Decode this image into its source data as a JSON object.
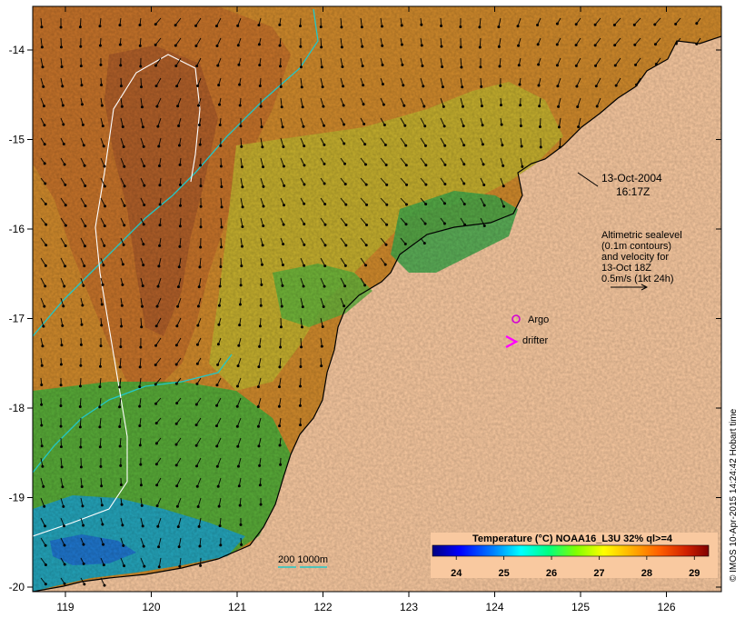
{
  "axes": {
    "lon_ticks": [
      "119",
      "120",
      "121",
      "122",
      "123",
      "124",
      "125",
      "126"
    ],
    "lat_ticks": [
      "-14",
      "-15",
      "-16",
      "-17",
      "-18",
      "-19",
      "-20"
    ]
  },
  "date_label": {
    "line1": "13-Oct-2004",
    "line2": "16:17Z"
  },
  "altimetry_note": {
    "lines": [
      "Altimetric sealevel",
      "(0.1m contours)",
      "and velocity for",
      "13-Oct 18Z",
      "0.5m/s (1kt 24h)"
    ]
  },
  "legend": {
    "argo_label": "Argo",
    "drifter_label": "drifter",
    "argo_color": "#d400d4",
    "drifter_color": "#ff00ff"
  },
  "bathymetry_label": "200  1000m",
  "colorbar": {
    "title": "Temperature (°C) NOAA16_L3U 32% ql>=4",
    "labels": [
      "24",
      "25",
      "26",
      "27",
      "28",
      "29"
    ],
    "range": [
      23.5,
      29.3
    ],
    "colors": [
      "#000080",
      "#0000ff",
      "#0080ff",
      "#00ffff",
      "#00ff80",
      "#80ff00",
      "#ffff00",
      "#ffb000",
      "#ff6000",
      "#d02000",
      "#800000"
    ]
  },
  "credit": "© IMOS 10-Apr-2015 14:24:42 Hobart time",
  "colors": {
    "land": "#f9c9a0",
    "warm_sst": "#d9922a",
    "mid_sst": "#c8c83a",
    "cool_sst": "#34b04a",
    "cold_sst": "#1e9fcf",
    "contour_200m": "#22c7c7",
    "contour_1000m": "#ffffff"
  }
}
